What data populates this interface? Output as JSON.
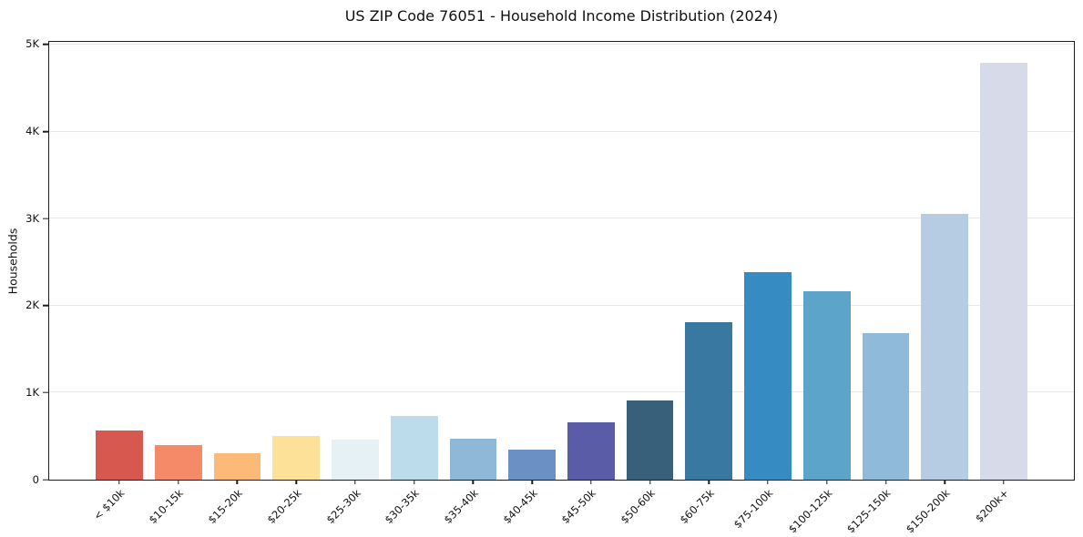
{
  "chart_data": {
    "type": "bar",
    "title": "US ZIP Code 76051 - Household Income Distribution (2024)",
    "xlabel": "",
    "ylabel": "Households",
    "categories": [
      "< $10k",
      "$10-15k",
      "$15-20k",
      "$20-25k",
      "$25-30k",
      "$30-35k",
      "$35-40k",
      "$40-45k",
      "$45-50k",
      "$50-60k",
      "$60-75k",
      "$75-100k",
      "$100-125k",
      "$125-150k",
      "$150-200k",
      "$200k+"
    ],
    "values": [
      560,
      400,
      300,
      505,
      465,
      730,
      475,
      350,
      655,
      915,
      1810,
      2385,
      2160,
      1685,
      3050,
      4790
    ],
    "bar_colors": [
      "#d6584f",
      "#f58a68",
      "#fcba79",
      "#fde198",
      "#e5f1f5",
      "#bcdcec",
      "#8fb8d8",
      "#6b90c4",
      "#5a5ca8",
      "#38607a",
      "#3878a1",
      "#368bc2",
      "#5ca4ca",
      "#90bad9",
      "#b6cce3",
      "#d7dae8"
    ],
    "ylim": [
      0,
      5030
    ],
    "yticks": {
      "values": [
        0,
        1000,
        2000,
        3000,
        4000,
        5000
      ],
      "labels": [
        "0",
        "1K",
        "2K",
        "3K",
        "4K",
        "5K"
      ]
    },
    "grid": "horizontal",
    "gridline_color": "#e9e9e9",
    "legend": "none",
    "x_tick_rotation_deg": 45,
    "bar_width_fraction": 0.8,
    "axis_color": "#1c1c1c"
  }
}
